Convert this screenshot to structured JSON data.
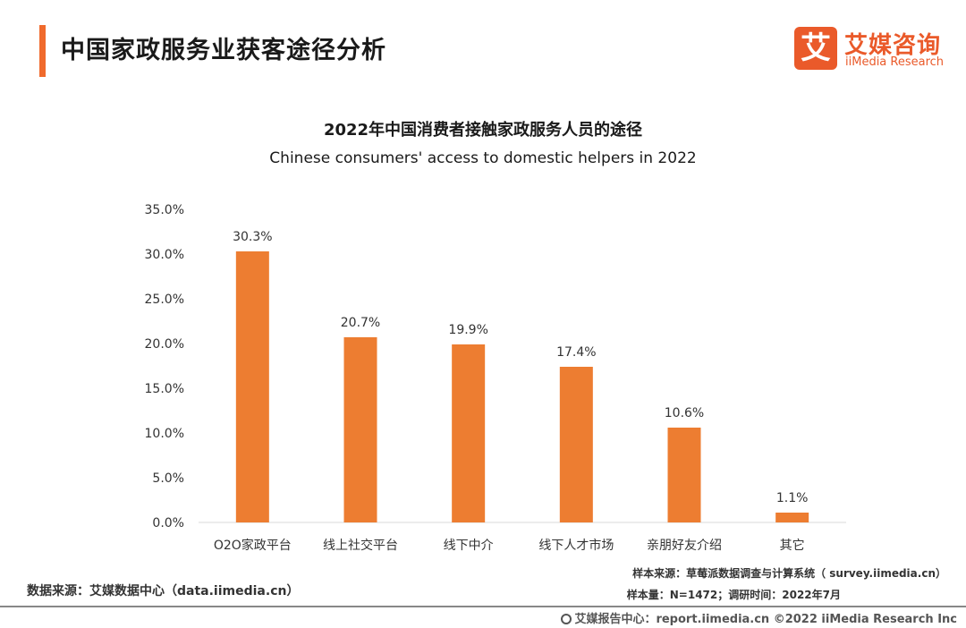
{
  "header": {
    "title": "中国家政服务业获客途径分析",
    "logo_mark": "艾",
    "logo_cn": "艾媒咨询",
    "logo_en": "iiMedia Research"
  },
  "chart_data": {
    "type": "bar",
    "title": "2022年中国消费者接触家政服务人员的途径",
    "subtitle": "Chinese consumers' access to domestic helpers in 2022",
    "categories": [
      "O2O家政平台",
      "线上社交平台",
      "线下中介",
      "线下人才市场",
      "亲朋好友介绍",
      "其它"
    ],
    "values": [
      30.3,
      20.7,
      19.9,
      17.4,
      10.6,
      1.1
    ],
    "value_labels": [
      "30.3%",
      "20.7%",
      "19.9%",
      "17.4%",
      "10.6%",
      "1.1%"
    ],
    "ylim": [
      0,
      35
    ],
    "yticks": [
      0,
      5,
      10,
      15,
      20,
      25,
      30,
      35
    ],
    "ytick_labels": [
      "0.0%",
      "5.0%",
      "10.0%",
      "15.0%",
      "20.0%",
      "25.0%",
      "30.0%",
      "35.0%"
    ],
    "bar_color": "#ed7d31",
    "xlabel": "",
    "ylabel": ""
  },
  "footer": {
    "data_source": "数据来源：艾媒数据中心（data.iimedia.cn）",
    "sample_source": "样本来源：草莓派数据调查与计算系统（ survey.iimedia.cn）",
    "sample_size": "样本量：N=1472；调研时间：2022年7月",
    "report_center": "艾媒报告中心：report.iimedia.cn   ©2022  iiMedia Research  Inc"
  }
}
